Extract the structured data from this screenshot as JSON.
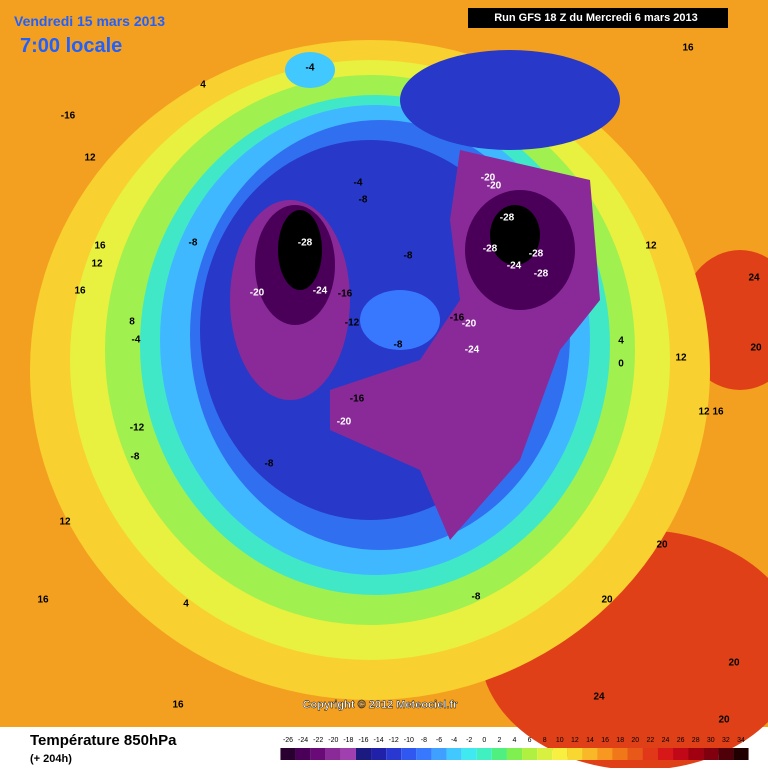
{
  "header": {
    "title": "Vendredi 15 mars 2013",
    "time": "7:00 locale",
    "run": "Run GFS 18 Z du Mercredi 6 mars 2013"
  },
  "copyright": "Copyright © 2012 Meteociel.fr",
  "footer": {
    "title": "Température 850hPa",
    "lead": "(+ 204h)"
  },
  "legend": {
    "labels": [
      -26,
      -24,
      -22,
      -20,
      -18,
      -16,
      -14,
      -12,
      -10,
      -8,
      -6,
      -4,
      -2,
      0,
      2,
      4,
      6,
      8,
      10,
      12,
      14,
      16,
      18,
      20,
      22,
      24,
      26,
      28,
      30,
      32,
      34
    ],
    "colors": [
      "#2a0030",
      "#4a0058",
      "#6a0a78",
      "#8a2a98",
      "#a040b0",
      "#1a1a80",
      "#2020a8",
      "#2838d0",
      "#3058f0",
      "#3878ff",
      "#40a0ff",
      "#40c8ff",
      "#40e8f0",
      "#40f0c0",
      "#50f080",
      "#80f050",
      "#b0f040",
      "#d8f040",
      "#f8f040",
      "#f8d830",
      "#f8b828",
      "#f89820",
      "#f07818",
      "#e85818",
      "#e03818",
      "#d81818",
      "#c00818",
      "#a00010",
      "#800010",
      "#500008",
      "#200000"
    ]
  },
  "map_labels": [
    -4,
    4,
    -16,
    12,
    -4,
    -8,
    -8,
    -28,
    16,
    12,
    16,
    -20,
    -24,
    -16,
    -8,
    -12,
    -8,
    -16,
    -20,
    -24,
    -20,
    -20,
    -28,
    -28,
    -28,
    -24,
    -28,
    16,
    12,
    4,
    0,
    12,
    12,
    16,
    24,
    20,
    -16,
    -20,
    -12,
    -8,
    -8,
    12,
    20,
    16,
    4,
    -8,
    20,
    20,
    24,
    16,
    20,
    8,
    -4
  ]
}
